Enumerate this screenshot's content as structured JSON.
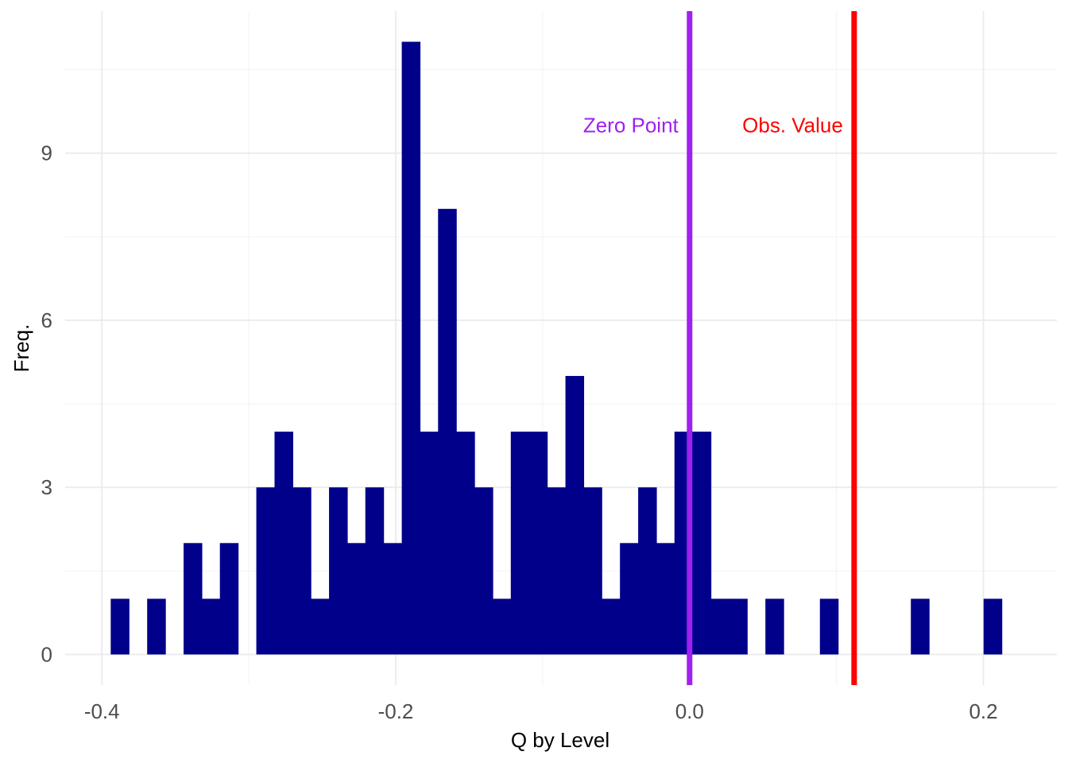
{
  "chart_data": {
    "type": "bar",
    "xlabel": "Q by Level",
    "ylabel": "Freq.",
    "xlim": [
      -0.425,
      0.25
    ],
    "ylim": [
      -0.55,
      11.55
    ],
    "x_ticks": [
      -0.4,
      -0.2,
      0.0,
      0.2
    ],
    "x_tick_labels": [
      "-0.4",
      "-0.2",
      "0.0",
      "0.2"
    ],
    "y_ticks": [
      0,
      3,
      6,
      9
    ],
    "y_tick_labels": [
      "0",
      "3",
      "6",
      "9"
    ],
    "grid": true,
    "bin_width": 0.01238,
    "bar_color": "#00008B",
    "bins": [
      {
        "x": -0.3878,
        "count": 1
      },
      {
        "x": -0.363,
        "count": 1
      },
      {
        "x": -0.3382,
        "count": 2
      },
      {
        "x": -0.3258,
        "count": 1
      },
      {
        "x": -0.3135,
        "count": 2
      },
      {
        "x": -0.2887,
        "count": 3
      },
      {
        "x": -0.2763,
        "count": 4
      },
      {
        "x": -0.264,
        "count": 3
      },
      {
        "x": -0.2516,
        "count": 1
      },
      {
        "x": -0.2392,
        "count": 3
      },
      {
        "x": -0.2268,
        "count": 2
      },
      {
        "x": -0.2145,
        "count": 3
      },
      {
        "x": -0.2021,
        "count": 2
      },
      {
        "x": -0.1897,
        "count": 11
      },
      {
        "x": -0.1773,
        "count": 4
      },
      {
        "x": -0.165,
        "count": 8
      },
      {
        "x": -0.1526,
        "count": 4
      },
      {
        "x": -0.1402,
        "count": 3
      },
      {
        "x": -0.1278,
        "count": 1
      },
      {
        "x": -0.1155,
        "count": 4
      },
      {
        "x": -0.1031,
        "count": 4
      },
      {
        "x": -0.0907,
        "count": 3
      },
      {
        "x": -0.0783,
        "count": 5
      },
      {
        "x": -0.066,
        "count": 3
      },
      {
        "x": -0.0536,
        "count": 1
      },
      {
        "x": -0.0412,
        "count": 2
      },
      {
        "x": -0.0288,
        "count": 3
      },
      {
        "x": -0.0165,
        "count": 2
      },
      {
        "x": -0.0041,
        "count": 4
      },
      {
        "x": 0.0083,
        "count": 4
      },
      {
        "x": 0.0207,
        "count": 1
      },
      {
        "x": 0.033,
        "count": 1
      },
      {
        "x": 0.0578,
        "count": 1
      },
      {
        "x": 0.0949,
        "count": 1
      },
      {
        "x": 0.1568,
        "count": 1
      },
      {
        "x": 0.2063,
        "count": 1
      }
    ],
    "vlines": [
      {
        "label": "Zero Point",
        "x": 0.0,
        "color": "#A020F0",
        "label_side": "left"
      },
      {
        "label": "Obs. Value",
        "x": 0.112,
        "color": "#FF0000",
        "label_side": "left"
      }
    ],
    "annotation_y": 9.5
  }
}
